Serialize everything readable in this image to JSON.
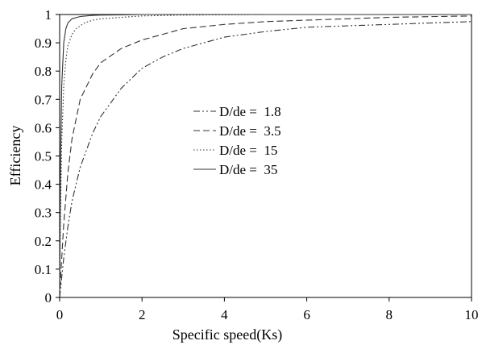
{
  "chart_data": {
    "type": "line",
    "title": "",
    "xlabel": "Specific speed(Ks)",
    "ylabel": "Efficiency",
    "xlim": [
      0,
      10
    ],
    "ylim": [
      0,
      1
    ],
    "grid": false,
    "legend_position": "center-left",
    "x_ticks": [
      "0",
      "2",
      "4",
      "6",
      "8",
      "10"
    ],
    "y_ticks": [
      "0",
      "0.1",
      "0.2",
      "0.3",
      "0.4",
      "0.5",
      "0.6",
      "0.7",
      "0.8",
      "0.9",
      "1"
    ],
    "series": [
      {
        "name": "D/de =  1.8",
        "line_style": "dash-dot-dot",
        "color": "#333333",
        "x": [
          0,
          0.1,
          0.2,
          0.3,
          0.5,
          0.8,
          1.0,
          1.5,
          2.0,
          2.5,
          3.0,
          4.0,
          5.0,
          6.0,
          7.0,
          8.0,
          9.0,
          10.0
        ],
        "y": [
          0,
          0.14,
          0.25,
          0.34,
          0.46,
          0.58,
          0.64,
          0.74,
          0.81,
          0.85,
          0.88,
          0.92,
          0.94,
          0.955,
          0.96,
          0.965,
          0.97,
          0.975
        ]
      },
      {
        "name": "D/de =  3.5",
        "line_style": "dashed",
        "color": "#333333",
        "x": [
          0,
          0.05,
          0.1,
          0.2,
          0.3,
          0.5,
          0.8,
          1.0,
          1.5,
          2.0,
          3.0,
          4.0,
          5.0,
          6.0,
          7.0,
          8.0,
          10.0
        ],
        "y": [
          0,
          0.14,
          0.26,
          0.44,
          0.56,
          0.7,
          0.79,
          0.83,
          0.88,
          0.91,
          0.95,
          0.965,
          0.975,
          0.98,
          0.985,
          0.99,
          0.995
        ]
      },
      {
        "name": "D/de =  15",
        "line_style": "dotted",
        "color": "#333333",
        "x": [
          0,
          0.02,
          0.05,
          0.1,
          0.15,
          0.2,
          0.3,
          0.4,
          0.6,
          0.8,
          1.0,
          1.5,
          2.0,
          3.0,
          5.0,
          10.0
        ],
        "y": [
          0,
          0.28,
          0.55,
          0.75,
          0.84,
          0.89,
          0.93,
          0.95,
          0.97,
          0.98,
          0.985,
          0.99,
          0.995,
          0.998,
          1.0,
          1.0
        ]
      },
      {
        "name": "D/de =  35",
        "line_style": "solid",
        "color": "#333333",
        "x": [
          0,
          0.02,
          0.05,
          0.1,
          0.15,
          0.2,
          0.3,
          0.5,
          0.8,
          1.0,
          1.5,
          2.0,
          5.0,
          10.0
        ],
        "y": [
          0,
          0.45,
          0.75,
          0.9,
          0.95,
          0.97,
          0.985,
          0.993,
          0.997,
          0.998,
          0.999,
          1.0,
          1.0,
          1.0
        ]
      }
    ]
  }
}
